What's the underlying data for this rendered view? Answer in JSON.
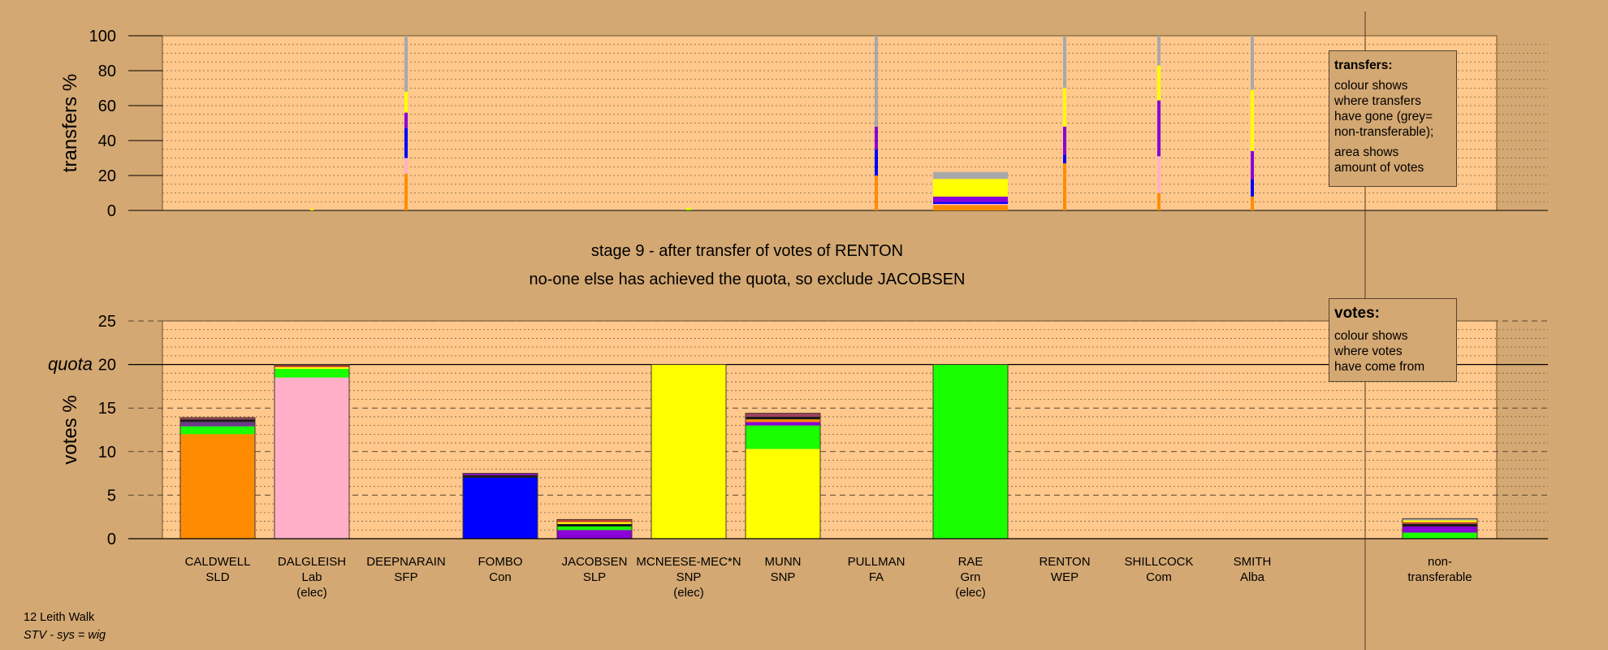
{
  "chart_data": [
    {
      "type": "bar",
      "ylabel": "transfers %",
      "ylim": [
        0,
        100
      ],
      "yticks": [
        0,
        20,
        40,
        60,
        80,
        100
      ],
      "categories": [
        "CALDWELL",
        "DALGLEISH",
        "DEEPNARAIN",
        "FOMBO",
        "JACOBSEN",
        "MCNEESE-MEC*N",
        "MUNN",
        "PULLMAN",
        "RAE",
        "RENTON",
        "SHILLCOCK",
        "SMITH",
        "non-transferable"
      ],
      "legend": {
        "title": "transfers:",
        "lines": [
          "colour shows\nwhere transfers\nhave gone (grey=\nnon-transferable);",
          "area shows\namount of votes"
        ]
      },
      "stacks": [
        {
          "category": "DALGLEISH",
          "amount": 1.0,
          "segments": [
            {
              "color": "#ffff00",
              "value": 100
            }
          ]
        },
        {
          "category": "DEEPNARAIN",
          "amount": 0.03,
          "segments": [
            {
              "color": "#ff8c00",
              "value": 21
            },
            {
              "color": "#ffb0c8",
              "value": 9
            },
            {
              "color": "#0000ff",
              "value": 17
            },
            {
              "color": "#8b00d6",
              "value": 9
            },
            {
              "color": "#ffff00",
              "value": 12
            },
            {
              "color": "#a8a8a8",
              "value": 32
            }
          ]
        },
        {
          "category": "MCNEESE-MEC*N",
          "amount": 1.5,
          "segments": [
            {
              "color": "#1aff00",
              "value": 30
            },
            {
              "color": "#ffff00",
              "value": 70
            }
          ]
        },
        {
          "category": "PULLMAN",
          "amount": 0.03,
          "segments": [
            {
              "color": "#ff8c00",
              "value": 20
            },
            {
              "color": "#0000ff",
              "value": 15
            },
            {
              "color": "#8b00d6",
              "value": 13
            },
            {
              "color": "#a8a8a8",
              "value": 52
            }
          ]
        },
        {
          "category": "RAE",
          "amount": 22.0,
          "segments": [
            {
              "color": "#ff8c00",
              "value": 14
            },
            {
              "color": "#ffb0c8",
              "value": 3
            },
            {
              "color": "#0000ff",
              "value": 5
            },
            {
              "color": "#8b00d6",
              "value": 14
            },
            {
              "color": "#ffff00",
              "value": 46
            },
            {
              "color": "#a8a8a8",
              "value": 18
            }
          ]
        },
        {
          "category": "RENTON",
          "amount": 0.03,
          "segments": [
            {
              "color": "#ff8c00",
              "value": 27
            },
            {
              "color": "#0000ff",
              "value": 5
            },
            {
              "color": "#8b00d6",
              "value": 16
            },
            {
              "color": "#ffff00",
              "value": 22
            },
            {
              "color": "#a8a8a8",
              "value": 30
            }
          ]
        },
        {
          "category": "SHILLCOCK",
          "amount": 0.03,
          "segments": [
            {
              "color": "#ff8c00",
              "value": 10
            },
            {
              "color": "#ffb0c8",
              "value": 21
            },
            {
              "color": "#8b00d6",
              "value": 32
            },
            {
              "color": "#ffff00",
              "value": 20
            },
            {
              "color": "#a8a8a8",
              "value": 17
            }
          ]
        },
        {
          "category": "SMITH",
          "amount": 0.03,
          "segments": [
            {
              "color": "#ff8c00",
              "value": 8
            },
            {
              "color": "#0000ff",
              "value": 10
            },
            {
              "color": "#8b00d6",
              "value": 16
            },
            {
              "color": "#ffff00",
              "value": 35
            },
            {
              "color": "#a8a8a8",
              "value": 31
            }
          ]
        }
      ]
    },
    {
      "type": "bar",
      "ylabel": "votes %",
      "ylim": [
        0,
        25
      ],
      "yticks": [
        0,
        5,
        10,
        15,
        20,
        25
      ],
      "quota": 20,
      "quota_label": "quota",
      "categories": [
        "CALDWELL",
        "DALGLEISH",
        "DEEPNARAIN",
        "FOMBO",
        "JACOBSEN",
        "MCNEESE-MEC*N",
        "MUNN",
        "PULLMAN",
        "RAE",
        "RENTON",
        "SHILLCOCK",
        "SMITH",
        "non-transferable"
      ],
      "legend": {
        "title": "votes:",
        "lines": [
          "colour shows\nwhere votes\nhave come from"
        ]
      },
      "stacks": [
        {
          "category": "CALDWELL",
          "segments": [
            {
              "color": "#ff8c00",
              "value": 12.0
            },
            {
              "color": "#1aff00",
              "value": 0.9
            },
            {
              "color": "#6a3a8a",
              "value": 0.5
            },
            {
              "color": "#1a1a1a",
              "value": 0.3
            },
            {
              "color": "#a04060",
              "value": 0.2
            }
          ]
        },
        {
          "category": "DALGLEISH",
          "segments": [
            {
              "color": "#ffb0c8",
              "value": 18.5
            },
            {
              "color": "#1aff00",
              "value": 1.0
            },
            {
              "color": "#ffff00",
              "value": 0.2
            },
            {
              "color": "#c04030",
              "value": 0.2
            },
            {
              "color": "#1a1a1a",
              "value": 0.1
            }
          ]
        },
        {
          "category": "FOMBO",
          "segments": [
            {
              "color": "#0000ff",
              "value": 7.0
            },
            {
              "color": "#1a1a1a",
              "value": 0.3
            },
            {
              "color": "#8b00d6",
              "value": 0.2
            }
          ]
        },
        {
          "category": "JACOBSEN",
          "segments": [
            {
              "color": "#8b00d6",
              "value": 1.0
            },
            {
              "color": "#1aff00",
              "value": 0.4
            },
            {
              "color": "#1a1a1a",
              "value": 0.3
            },
            {
              "color": "#ffff00",
              "value": 0.2
            },
            {
              "color": "#c04030",
              "value": 0.3
            }
          ]
        },
        {
          "category": "MCNEESE-MEC*N",
          "segments": [
            {
              "color": "#ffff00",
              "value": 20.0
            }
          ]
        },
        {
          "category": "MUNN",
          "segments": [
            {
              "color": "#ffff00",
              "value": 10.3
            },
            {
              "color": "#1aff00",
              "value": 2.7
            },
            {
              "color": "#8b00d6",
              "value": 0.4
            },
            {
              "color": "#ff8c00",
              "value": 0.3
            },
            {
              "color": "#1a1a1a",
              "value": 0.3
            },
            {
              "color": "#a04060",
              "value": 0.4
            }
          ]
        },
        {
          "category": "RAE",
          "segments": [
            {
              "color": "#1aff00",
              "value": 20.0
            }
          ]
        },
        {
          "category": "non-transferable",
          "segments": [
            {
              "color": "#1aff00",
              "value": 0.7
            },
            {
              "color": "#8b00d6",
              "value": 0.7
            },
            {
              "color": "#1a1a1a",
              "value": 0.3
            },
            {
              "color": "#c04030",
              "value": 0.2
            },
            {
              "color": "#ffff00",
              "value": 0.2
            },
            {
              "color": "#a8a8a8",
              "value": 0.2
            }
          ]
        }
      ]
    }
  ],
  "candidates": [
    {
      "name": "CALDWELL",
      "party": "SLD",
      "status": ""
    },
    {
      "name": "DALGLEISH",
      "party": "Lab",
      "status": "(elec)"
    },
    {
      "name": "DEEPNARAIN",
      "party": "SFP",
      "status": ""
    },
    {
      "name": "FOMBO",
      "party": "Con",
      "status": ""
    },
    {
      "name": "JACOBSEN",
      "party": "SLP",
      "status": ""
    },
    {
      "name": "MCNEESE-MEC*N",
      "party": "SNP",
      "status": "(elec)"
    },
    {
      "name": "MUNN",
      "party": "SNP",
      "status": ""
    },
    {
      "name": "PULLMAN",
      "party": "FA",
      "status": ""
    },
    {
      "name": "RAE",
      "party": "Grn",
      "status": "(elec)"
    },
    {
      "name": "RENTON",
      "party": "WEP",
      "status": ""
    },
    {
      "name": "SHILLCOCK",
      "party": "Com",
      "status": ""
    },
    {
      "name": "SMITH",
      "party": "Alba",
      "status": ""
    }
  ],
  "nontransferable_label": {
    "line1": "non-",
    "line2": "transferable"
  },
  "stage": {
    "title": "stage 9 - after transfer of votes of RENTON",
    "subtitle": "no-one else has achieved the quota, so exclude JACOBSEN"
  },
  "footer": {
    "ward": "12 Leith Walk",
    "system": "STV - sys = wig"
  },
  "colors": {
    "background": "#d4a872",
    "plot": "#ffc88c"
  }
}
